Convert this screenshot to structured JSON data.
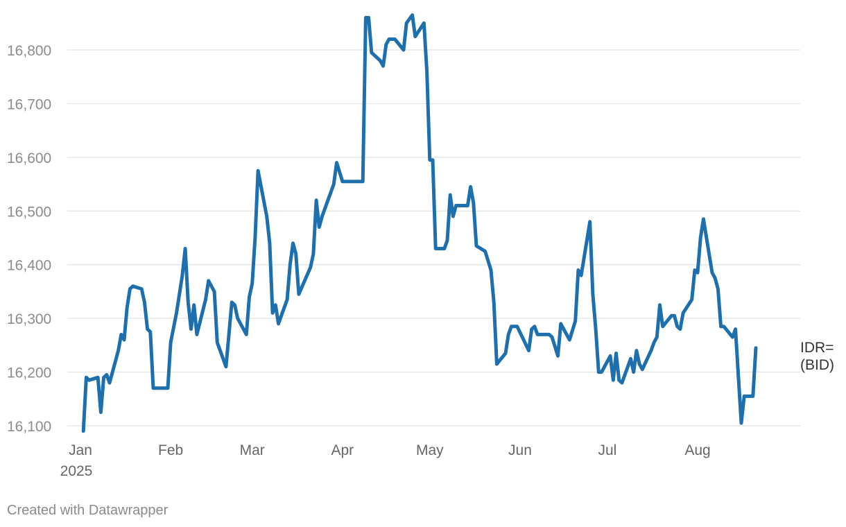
{
  "chart_data": {
    "type": "line",
    "title": "",
    "xlabel": "",
    "ylabel": "",
    "ylim": [
      16090,
      16870
    ],
    "yticks": [
      16100,
      16200,
      16300,
      16400,
      16500,
      16600,
      16700,
      16800
    ],
    "ytick_labels": [
      "16,100",
      "16,200",
      "16,300",
      "16,400",
      "16,500",
      "16,600",
      "16,700",
      "16,800"
    ],
    "xlim": [
      "2025-01-01",
      "2025-08-31"
    ],
    "xticks": [
      {
        "date": "2025-01-01",
        "label": "Jan",
        "sublabel": "2025"
      },
      {
        "date": "2025-02-01",
        "label": "Feb"
      },
      {
        "date": "2025-03-01",
        "label": "Mar"
      },
      {
        "date": "2025-04-01",
        "label": "Apr"
      },
      {
        "date": "2025-05-01",
        "label": "May"
      },
      {
        "date": "2025-06-01",
        "label": "Jun"
      },
      {
        "date": "2025-07-01",
        "label": "Jul"
      },
      {
        "date": "2025-08-01",
        "label": "Aug"
      }
    ],
    "grid": true,
    "series": [
      {
        "name": "IDR= (BID)",
        "label_lines": [
          "IDR=",
          "(BID)"
        ],
        "color": "#1d6fae",
        "points": [
          [
            "2025-01-02",
            16090
          ],
          [
            "2025-01-03",
            16190
          ],
          [
            "2025-01-04",
            16185
          ],
          [
            "2025-01-07",
            16190
          ],
          [
            "2025-01-08",
            16125
          ],
          [
            "2025-01-09",
            16190
          ],
          [
            "2025-01-10",
            16195
          ],
          [
            "2025-01-11",
            16180
          ],
          [
            "2025-01-14",
            16240
          ],
          [
            "2025-01-15",
            16270
          ],
          [
            "2025-01-16",
            16260
          ],
          [
            "2025-01-17",
            16320
          ],
          [
            "2025-01-18",
            16355
          ],
          [
            "2025-01-19",
            16360
          ],
          [
            "2025-01-22",
            16355
          ],
          [
            "2025-01-23",
            16330
          ],
          [
            "2025-01-24",
            16280
          ],
          [
            "2025-01-25",
            16275
          ],
          [
            "2025-01-26",
            16170
          ],
          [
            "2025-01-31",
            16170
          ],
          [
            "2025-02-01",
            16255
          ],
          [
            "2025-02-03",
            16310
          ],
          [
            "2025-02-05",
            16380
          ],
          [
            "2025-02-06",
            16430
          ],
          [
            "2025-02-07",
            16330
          ],
          [
            "2025-02-08",
            16280
          ],
          [
            "2025-02-09",
            16325
          ],
          [
            "2025-02-10",
            16270
          ],
          [
            "2025-02-13",
            16335
          ],
          [
            "2025-02-14",
            16370
          ],
          [
            "2025-02-16",
            16350
          ],
          [
            "2025-02-17",
            16255
          ],
          [
            "2025-02-20",
            16210
          ],
          [
            "2025-02-21",
            16270
          ],
          [
            "2025-02-22",
            16330
          ],
          [
            "2025-02-23",
            16325
          ],
          [
            "2025-02-24",
            16300
          ],
          [
            "2025-02-27",
            16270
          ],
          [
            "2025-02-28",
            16340
          ],
          [
            "2025-03-01",
            16365
          ],
          [
            "2025-03-02",
            16450
          ],
          [
            "2025-03-03",
            16575
          ],
          [
            "2025-03-06",
            16490
          ],
          [
            "2025-03-07",
            16440
          ],
          [
            "2025-03-08",
            16310
          ],
          [
            "2025-03-09",
            16325
          ],
          [
            "2025-03-10",
            16290
          ],
          [
            "2025-03-13",
            16335
          ],
          [
            "2025-03-14",
            16400
          ],
          [
            "2025-03-15",
            16440
          ],
          [
            "2025-03-16",
            16420
          ],
          [
            "2025-03-17",
            16345
          ],
          [
            "2025-03-21",
            16395
          ],
          [
            "2025-03-22",
            16420
          ],
          [
            "2025-03-23",
            16520
          ],
          [
            "2025-03-24",
            16470
          ],
          [
            "2025-03-25",
            16490
          ],
          [
            "2025-03-29",
            16550
          ],
          [
            "2025-03-30",
            16590
          ],
          [
            "2025-04-01",
            16555
          ],
          [
            "2025-04-08",
            16555
          ],
          [
            "2025-04-09",
            16860
          ],
          [
            "2025-04-10",
            16860
          ],
          [
            "2025-04-11",
            16795
          ],
          [
            "2025-04-14",
            16780
          ],
          [
            "2025-04-15",
            16770
          ],
          [
            "2025-04-16",
            16810
          ],
          [
            "2025-04-17",
            16820
          ],
          [
            "2025-04-19",
            16820
          ],
          [
            "2025-04-22",
            16800
          ],
          [
            "2025-04-23",
            16850
          ],
          [
            "2025-04-25",
            16865
          ],
          [
            "2025-04-26",
            16825
          ],
          [
            "2025-04-29",
            16850
          ],
          [
            "2025-04-30",
            16760
          ],
          [
            "2025-05-01",
            16595
          ],
          [
            "2025-05-02",
            16595
          ],
          [
            "2025-05-03",
            16430
          ],
          [
            "2025-05-06",
            16430
          ],
          [
            "2025-05-07",
            16445
          ],
          [
            "2025-05-08",
            16530
          ],
          [
            "2025-05-09",
            16490
          ],
          [
            "2025-05-10",
            16510
          ],
          [
            "2025-05-14",
            16510
          ],
          [
            "2025-05-15",
            16545
          ],
          [
            "2025-05-16",
            16515
          ],
          [
            "2025-05-17",
            16435
          ],
          [
            "2025-05-20",
            16425
          ],
          [
            "2025-05-22",
            16390
          ],
          [
            "2025-05-23",
            16330
          ],
          [
            "2025-05-24",
            16215
          ],
          [
            "2025-05-27",
            16235
          ],
          [
            "2025-05-28",
            16270
          ],
          [
            "2025-05-29",
            16285
          ],
          [
            "2025-05-31",
            16285
          ],
          [
            "2025-06-04",
            16240
          ],
          [
            "2025-06-05",
            16280
          ],
          [
            "2025-06-06",
            16285
          ],
          [
            "2025-06-07",
            16270
          ],
          [
            "2025-06-11",
            16270
          ],
          [
            "2025-06-12",
            16265
          ],
          [
            "2025-06-14",
            16230
          ],
          [
            "2025-06-15",
            16290
          ],
          [
            "2025-06-18",
            16260
          ],
          [
            "2025-06-20",
            16295
          ],
          [
            "2025-06-21",
            16390
          ],
          [
            "2025-06-22",
            16380
          ],
          [
            "2025-06-25",
            16480
          ],
          [
            "2025-06-26",
            16345
          ],
          [
            "2025-06-27",
            16280
          ],
          [
            "2025-06-28",
            16200
          ],
          [
            "2025-06-29",
            16200
          ],
          [
            "2025-07-02",
            16230
          ],
          [
            "2025-07-03",
            16185
          ],
          [
            "2025-07-04",
            16235
          ],
          [
            "2025-07-05",
            16185
          ],
          [
            "2025-07-06",
            16180
          ],
          [
            "2025-07-09",
            16225
          ],
          [
            "2025-07-10",
            16200
          ],
          [
            "2025-07-11",
            16240
          ],
          [
            "2025-07-12",
            16215
          ],
          [
            "2025-07-13",
            16205
          ],
          [
            "2025-07-16",
            16240
          ],
          [
            "2025-07-17",
            16255
          ],
          [
            "2025-07-18",
            16265
          ],
          [
            "2025-07-19",
            16325
          ],
          [
            "2025-07-20",
            16285
          ],
          [
            "2025-07-23",
            16305
          ],
          [
            "2025-07-24",
            16305
          ],
          [
            "2025-07-25",
            16285
          ],
          [
            "2025-07-26",
            16280
          ],
          [
            "2025-07-27",
            16310
          ],
          [
            "2025-07-30",
            16335
          ],
          [
            "2025-07-31",
            16390
          ],
          [
            "2025-08-01",
            16385
          ],
          [
            "2025-08-02",
            16450
          ],
          [
            "2025-08-03",
            16485
          ],
          [
            "2025-08-06",
            16385
          ],
          [
            "2025-08-07",
            16375
          ],
          [
            "2025-08-08",
            16355
          ],
          [
            "2025-08-09",
            16285
          ],
          [
            "2025-08-10",
            16285
          ],
          [
            "2025-08-13",
            16265
          ],
          [
            "2025-08-14",
            16280
          ],
          [
            "2025-08-16",
            16105
          ],
          [
            "2025-08-17",
            16155
          ],
          [
            "2025-08-20",
            16155
          ],
          [
            "2025-08-21",
            16245
          ]
        ]
      }
    ]
  },
  "footer": {
    "credit": "Created with Datawrapper"
  }
}
